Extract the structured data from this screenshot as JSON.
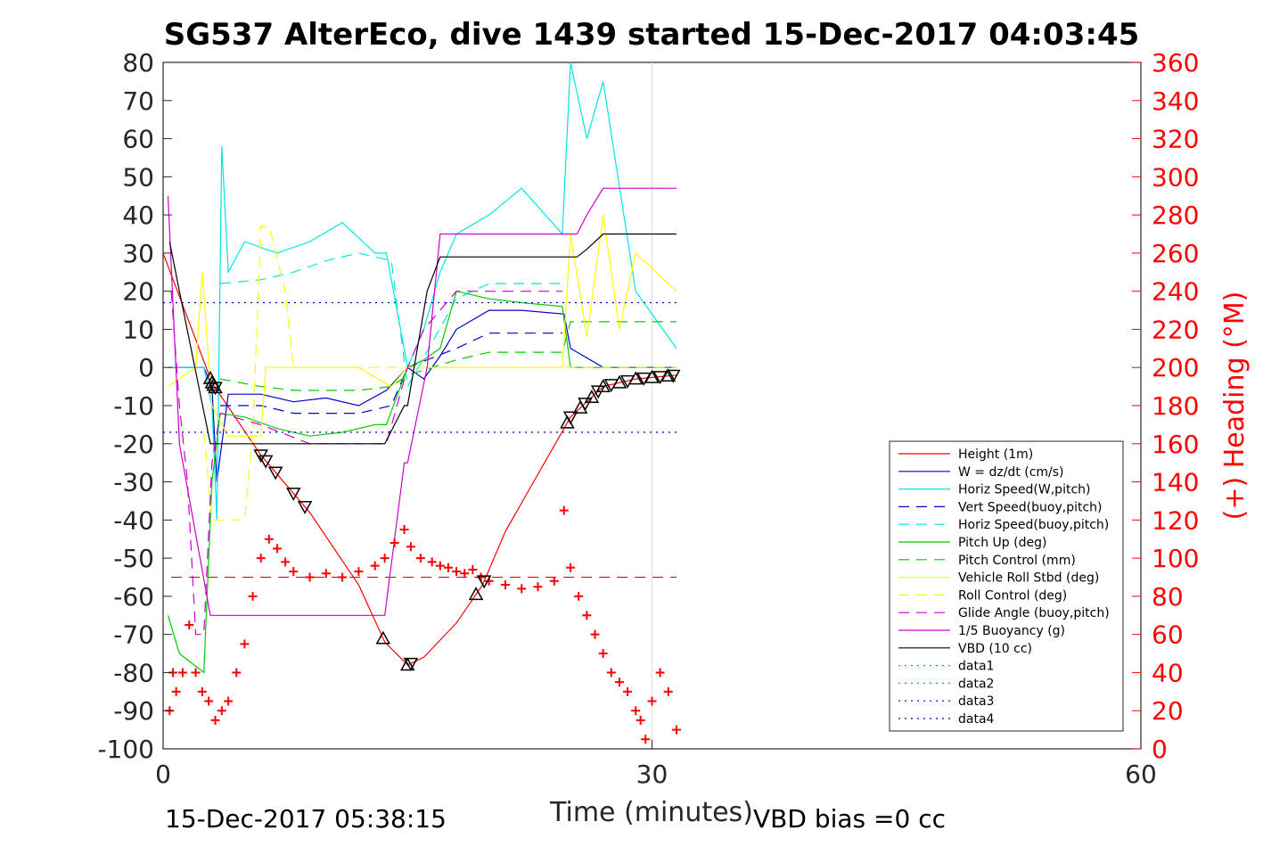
{
  "chart_data": {
    "type": "line",
    "title": "SG537 AlterEco, dive 1439 started 15-Dec-2017 04:03:45",
    "xlabel": "Time (minutes)",
    "ylabel": "",
    "ylabel_right": "(+) Heading (°M)",
    "xlim": [
      0,
      60
    ],
    "ylim": [
      -100,
      80
    ],
    "ylim_right": [
      0,
      360
    ],
    "x_ticks": [
      "0",
      "30",
      "60"
    ],
    "y_ticks": [
      "80",
      "70",
      "60",
      "50",
      "40",
      "30",
      "20",
      "10",
      "0",
      "-10",
      "-20",
      "-30",
      "-40",
      "-50",
      "-60",
      "-70",
      "-80",
      "-90",
      "-100"
    ],
    "y_right_ticks": [
      "360",
      "340",
      "320",
      "300",
      "280",
      "260",
      "240",
      "220",
      "200",
      "180",
      "160",
      "140",
      "120",
      "100",
      "80",
      "60",
      "40",
      "20",
      "0"
    ],
    "footer_left": "15-Dec-2017 05:38:15",
    "footer_right": "VBD bias =0 cc",
    "legend_position": "lower-right",
    "grid": "x-only at 30",
    "series": [
      {
        "name": "Height (1m)",
        "color": "#ff0000",
        "style": "solid",
        "x": [
          0,
          3,
          6,
          9,
          12,
          13.6,
          15,
          16,
          18,
          19.6,
          21,
          23,
          25,
          27,
          29,
          31.5
        ],
        "values": [
          30,
          -4,
          -23,
          -38,
          -57,
          -72,
          -78,
          -76,
          -67,
          -57,
          -43,
          -28,
          -13,
          -5,
          -3,
          -2
        ]
      },
      {
        "name": "W = dz/dt (cm/s)",
        "color": "#0000cc",
        "style": "solid",
        "x": [
          0.3,
          2.5,
          3,
          3.3,
          4,
          6,
          8,
          10,
          12,
          13.7,
          15,
          16,
          17,
          18,
          20,
          22,
          24.6,
          25,
          27,
          29,
          31.5
        ],
        "values": [
          0,
          0,
          -5,
          -30,
          -7,
          -7,
          -9,
          -8,
          -10,
          -6,
          0,
          -3,
          3,
          10,
          15,
          15,
          14,
          5,
          0,
          0,
          0
        ]
      },
      {
        "name": "Horiz Speed(W,pitch)",
        "color": "#00e5e5",
        "style": "solid",
        "x": [
          0.3,
          2.5,
          3,
          3.3,
          3.6,
          4,
          5,
          7,
          9,
          11,
          13,
          13.7,
          15,
          16,
          17,
          18,
          20,
          22,
          24.5,
          25,
          26,
          27,
          29,
          31.5
        ],
        "values": [
          0,
          0,
          -10,
          -40,
          58,
          25,
          33,
          30,
          33,
          38,
          30,
          30,
          0,
          10,
          25,
          35,
          40,
          47,
          35,
          80,
          60,
          75,
          20,
          5
        ]
      },
      {
        "name": "Vert Speed(buoy,pitch)",
        "color": "#0000cc",
        "style": "dash",
        "x": [
          3.5,
          6,
          8,
          10,
          12,
          14,
          15,
          18,
          20,
          22,
          24.5
        ],
        "values": [
          -10,
          -10,
          -12,
          -12,
          -12,
          -10,
          0,
          5,
          9,
          9,
          9
        ]
      },
      {
        "name": "Horiz Speed(buoy,pitch)",
        "color": "#00e5e5",
        "style": "dash",
        "x": [
          3.5,
          6,
          8,
          10,
          12,
          14,
          15,
          18,
          20,
          22,
          24.5
        ],
        "values": [
          22,
          23,
          25,
          28,
          30,
          28,
          -5,
          18,
          22,
          22,
          22
        ]
      },
      {
        "name": "Pitch Up (deg)",
        "color": "#00cc00",
        "style": "solid",
        "x": [
          0.3,
          1,
          2.5,
          3,
          3.5,
          5,
          7,
          9,
          11,
          13,
          13.7,
          15,
          16,
          17,
          18,
          20,
          22,
          24.5,
          25,
          27,
          29,
          31.5
        ],
        "values": [
          -65,
          -75,
          -80,
          -30,
          -12,
          -13,
          -16,
          -18,
          -17,
          -15,
          -15,
          0,
          2,
          5,
          20,
          18,
          17,
          16,
          0,
          0,
          0,
          0
        ]
      },
      {
        "name": "Pitch Control (mm)",
        "color": "#00cc00",
        "style": "dash",
        "x": [
          3.5,
          6,
          8,
          10,
          12,
          14,
          15,
          18,
          20,
          22,
          24.5,
          25,
          31.5
        ],
        "values": [
          -3,
          -5,
          -6,
          -6,
          -6,
          -5,
          -2,
          2,
          4,
          4,
          4,
          12,
          12
        ]
      },
      {
        "name": "Vehicle Roll Stbd (deg)",
        "color": "#ffff00",
        "style": "solid",
        "x": [
          0.3,
          2,
          2.4,
          3,
          4,
          6,
          6.3,
          7,
          8,
          10,
          12,
          14,
          15,
          18,
          22,
          24.5,
          25,
          26,
          27,
          28,
          29,
          31.5
        ],
        "values": [
          -5,
          0,
          25,
          -10,
          -18,
          -18,
          0,
          0,
          0,
          0,
          0,
          -5,
          0,
          0,
          0,
          0,
          35,
          8,
          40,
          10,
          30,
          20
        ]
      },
      {
        "name": "Roll Control (deg)",
        "color": "#ffff00",
        "style": "dash",
        "x": [
          2.5,
          3,
          3.5,
          5,
          5.5,
          6,
          6.5,
          7.5,
          8,
          10,
          14,
          15,
          22,
          25,
          31.5
        ],
        "values": [
          -17,
          -40,
          -40,
          -40,
          -17,
          37,
          37,
          20,
          0,
          0,
          0,
          0,
          0,
          0,
          0
        ]
      },
      {
        "name": "Glide Angle (buoy,pitch)",
        "color": "#cc00cc",
        "style": "dash",
        "x": [
          0.5,
          1,
          1.5,
          2,
          2.5,
          3,
          3.5,
          6,
          9,
          13.7,
          15,
          16,
          18,
          20,
          22,
          24.5
        ],
        "values": [
          20,
          -10,
          -30,
          -70,
          -70,
          -25,
          -12,
          -15,
          -20,
          -20,
          0,
          10,
          20,
          20,
          20,
          20
        ]
      },
      {
        "name": "1/5 Buoyancy (g)",
        "color": "#cc00cc",
        "style": "solid",
        "x": [
          0.3,
          1,
          2.9,
          3,
          13.6,
          14.8,
          15,
          16.2,
          17,
          25.4,
          26,
          27,
          31.5
        ],
        "values": [
          45,
          -20,
          -65,
          -65,
          -65,
          -25,
          -25,
          0,
          35,
          35,
          40,
          47,
          47
        ]
      },
      {
        "name": "VBD (10 cc)",
        "color": "#000000",
        "style": "solid",
        "x": [
          0.4,
          1,
          2.9,
          3,
          13.6,
          14.8,
          15,
          16.2,
          17,
          25.4,
          26,
          27,
          31.5
        ],
        "values": [
          33,
          20,
          -20,
          -20,
          -20,
          -10,
          -10,
          20,
          29,
          29,
          31,
          35,
          35
        ]
      },
      {
        "name": "data1",
        "color": "#00cc00",
        "style": "dot",
        "x": [],
        "values": []
      },
      {
        "name": "data2",
        "color": "#00cc00",
        "style": "dot",
        "x": [],
        "values": []
      },
      {
        "name": "data3",
        "color": "#0000cc",
        "style": "dot",
        "x": [
          0,
          31.5
        ],
        "values": [
          17,
          17
        ]
      },
      {
        "name": "data4",
        "color": "#0000cc",
        "style": "dot",
        "x": [
          0,
          31.5
        ],
        "values": [
          -17,
          -17
        ]
      }
    ],
    "heading_axis": "right",
    "heading_color": "#ff0000",
    "heading_points": [
      [
        0.4,
        20
      ],
      [
        0.6,
        40
      ],
      [
        0.8,
        30
      ],
      [
        1.2,
        40
      ],
      [
        1.6,
        65
      ],
      [
        2.0,
        40
      ],
      [
        2.4,
        30
      ],
      [
        2.8,
        25
      ],
      [
        3.2,
        15
      ],
      [
        3.6,
        20
      ],
      [
        4.0,
        25
      ],
      [
        4.5,
        40
      ],
      [
        5.0,
        55
      ],
      [
        5.5,
        80
      ],
      [
        6.0,
        100
      ],
      [
        6.5,
        110
      ],
      [
        7.0,
        105
      ],
      [
        7.5,
        98
      ],
      [
        8.0,
        93
      ],
      [
        9.0,
        90
      ],
      [
        10.0,
        92
      ],
      [
        11.0,
        90
      ],
      [
        12.0,
        93
      ],
      [
        13.0,
        96
      ],
      [
        13.6,
        100
      ],
      [
        14.2,
        108
      ],
      [
        14.8,
        115
      ],
      [
        15.2,
        106
      ],
      [
        15.8,
        100
      ],
      [
        16.5,
        98
      ],
      [
        17.0,
        96
      ],
      [
        17.5,
        95
      ],
      [
        18.0,
        93
      ],
      [
        18.5,
        92
      ],
      [
        19.0,
        94
      ],
      [
        19.5,
        90
      ],
      [
        20.0,
        88
      ],
      [
        21.0,
        86
      ],
      [
        22.0,
        84
      ],
      [
        23.0,
        85
      ],
      [
        24.0,
        88
      ],
      [
        24.6,
        125
      ],
      [
        25.0,
        95
      ],
      [
        25.5,
        80
      ],
      [
        26.0,
        70
      ],
      [
        26.5,
        60
      ],
      [
        27.0,
        50
      ],
      [
        27.5,
        40
      ],
      [
        28.0,
        35
      ],
      [
        28.5,
        30
      ],
      [
        29.0,
        20
      ],
      [
        29.3,
        15
      ],
      [
        29.6,
        5
      ],
      [
        30.0,
        25
      ],
      [
        30.5,
        40
      ],
      [
        31.0,
        30
      ],
      [
        31.5,
        10
      ]
    ],
    "markers": [
      {
        "type": "triangle-up",
        "x": [
          2.9,
          3.0,
          3.1,
          3.2,
          13.5,
          15.0,
          19.2,
          24.8,
          25.6,
          26.3,
          27.0,
          28.0,
          29.0,
          30.0,
          31.0
        ]
      },
      {
        "type": "triangle-down",
        "x": [
          3.2,
          6.0,
          6.3,
          6.9,
          8.0,
          8.7,
          15.2,
          19.7,
          25.0,
          25.9,
          26.7,
          27.5,
          28.5,
          29.5,
          30.5,
          31.3
        ]
      }
    ],
    "reference_line": {
      "axis": "right",
      "value": 90,
      "color": "#cc0000",
      "style": "dash"
    }
  }
}
